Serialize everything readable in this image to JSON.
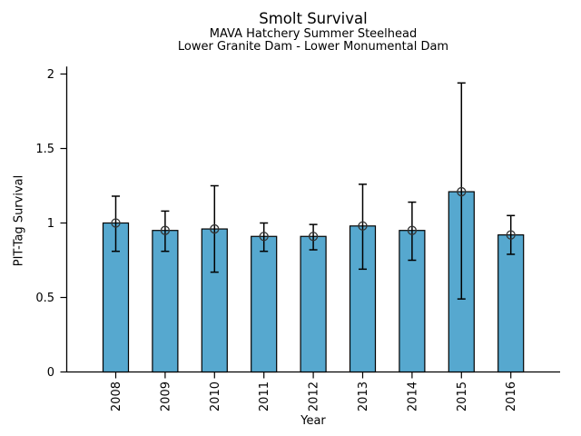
{
  "chart_data": {
    "type": "bar",
    "title": "Smolt Survival",
    "subtitle1": "MAVA Hatchery Summer Steelhead",
    "subtitle2": "Lower Granite Dam - Lower Monumental Dam",
    "xlabel": "Year",
    "ylabel": "PIT-Tag Survival",
    "categories": [
      "2008",
      "2009",
      "2010",
      "2011",
      "2012",
      "2013",
      "2014",
      "2015",
      "2016"
    ],
    "values": [
      1.0,
      0.95,
      0.96,
      0.91,
      0.91,
      0.98,
      0.95,
      1.21,
      0.92
    ],
    "error_low": [
      0.81,
      0.81,
      0.67,
      0.81,
      0.82,
      0.69,
      0.75,
      0.49,
      0.79
    ],
    "error_high": [
      1.18,
      1.08,
      1.25,
      1.0,
      0.99,
      1.26,
      1.14,
      1.94,
      1.05
    ],
    "yticks": [
      {
        "value": 0,
        "label": "0"
      },
      {
        "value": 0.5,
        "label": "0.5"
      },
      {
        "value": 1,
        "label": "1"
      },
      {
        "value": 1.5,
        "label": "1.5"
      },
      {
        "value": 2,
        "label": "2"
      }
    ],
    "ylim": [
      0,
      2.05
    ],
    "grid": false,
    "legend": "none",
    "marker": "open-circle",
    "colors": {
      "bar_fill": "#56A8CF",
      "bar_edge": "#000000",
      "error_bar": "#000000",
      "marker_edge": "#333333",
      "axis": "#000000",
      "text": "#000000",
      "background": "#FFFFFF"
    }
  }
}
